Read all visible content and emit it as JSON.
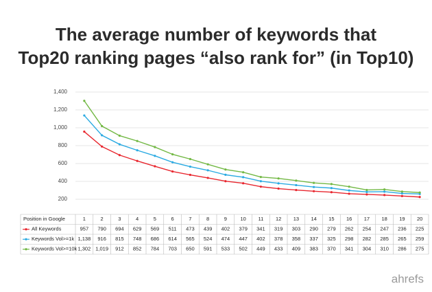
{
  "chart_data": {
    "type": "line",
    "title": [
      "The average number of keywords that",
      "Top20 ranking pages “also rank for” (in Top10)"
    ],
    "table_header": "Position in Google",
    "categories": [
      "1",
      "2",
      "3",
      "4",
      "5",
      "6",
      "7",
      "8",
      "9",
      "10",
      "11",
      "12",
      "13",
      "14",
      "15",
      "16",
      "17",
      "18",
      "19",
      "20"
    ],
    "series": [
      {
        "name": "All Keywords",
        "color": "#e8262e",
        "values": [
          957,
          790,
          694,
          629,
          569,
          511,
          473,
          439,
          402,
          379,
          341,
          319,
          303,
          290,
          279,
          262,
          254,
          247,
          236,
          225
        ]
      },
      {
        "name": "Keywords Vol>=1k",
        "color": "#2aaae2",
        "values": [
          1138,
          916,
          815,
          748,
          686,
          614,
          565,
          524,
          474,
          447,
          402,
          378,
          358,
          337,
          325,
          298,
          282,
          285,
          265,
          259
        ],
        "value_labels": [
          "1,138",
          "916",
          "815",
          "748",
          "686",
          "614",
          "565",
          "524",
          "474",
          "447",
          "402",
          "378",
          "358",
          "337",
          "325",
          "298",
          "282",
          "285",
          "265",
          "259"
        ]
      },
      {
        "name": "Keywords Vol>=10k",
        "color": "#72b844",
        "values": [
          1302,
          1019,
          912,
          852,
          784,
          703,
          650,
          591,
          533,
          502,
          449,
          433,
          409,
          383,
          370,
          341,
          304,
          310,
          286,
          275
        ],
        "value_labels": [
          "1,302",
          "1,019",
          "912",
          "852",
          "784",
          "703",
          "650",
          "591",
          "533",
          "502",
          "449",
          "433",
          "409",
          "383",
          "370",
          "341",
          "304",
          "310",
          "286",
          "275"
        ]
      }
    ],
    "ylim": [
      200,
      1400
    ],
    "yticks": [
      200,
      400,
      600,
      800,
      {
        "value": 1000,
        "label": "1,000"
      },
      {
        "value": 1200,
        "label": "1,200"
      },
      {
        "value": 1400,
        "label": "1,400"
      }
    ],
    "grid": true,
    "brand": "ahrefs"
  }
}
